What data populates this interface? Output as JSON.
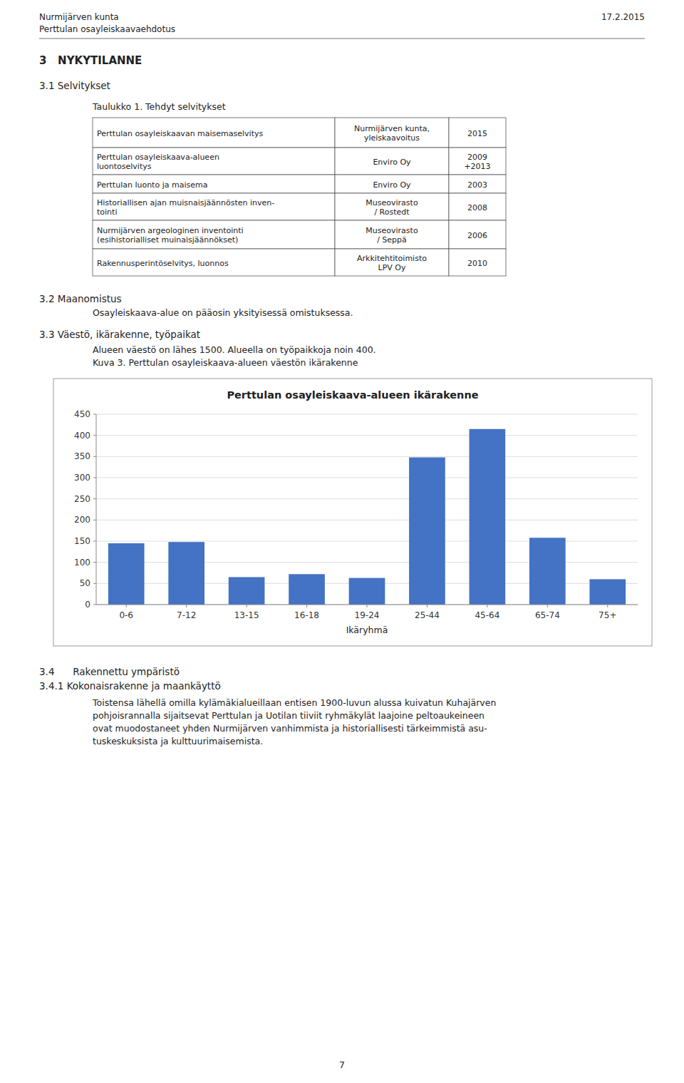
{
  "page_title_left": "Nurmijärven kunta",
  "page_title_right": "17.2.2015",
  "page_subtitle": "Perttulan osayleiskaavaehdotus",
  "section_heading": "3   NYKYTILANNE",
  "sub_heading1": "3.1 Selvitykset",
  "table_caption": "Taulukko 1. Tehdyt selvitykset",
  "table_rows": [
    [
      "Perttulan osayleiskaavan maisemaselvitys",
      "Nurmijärven kunta,\nyleiskaavoitus",
      "2015"
    ],
    [
      "Perttulan osayleiskaava-alueen\nluontoselvitys",
      "Enviro Oy",
      "2009\n+2013"
    ],
    [
      "Perttulan luonto ja maisema",
      "Enviro Oy",
      "2003"
    ],
    [
      "Historiallisen ajan muisnaisjäännösten inven-\ntointi",
      "Museovirasto\n/ Rostedt",
      "2008"
    ],
    [
      "Nurmijärven argeologinen inventointi\n(esihistorialliset muinaisjäännökset)",
      "Museovirasto\n/ Seppä",
      "2006"
    ],
    [
      "Rakennusperintöselvitys, luonnos",
      "Arkkitehtitoimisto\nLPV Oy",
      "2010"
    ]
  ],
  "sub_heading2": "3.2 Maanomistus",
  "paragraph2": "Osayleiskaava-alue on pääosin yksityisessä omistuksessa.",
  "sub_heading3": "3.3 Väestö, ikärakenne, työpaikat",
  "paragraph3a": "Alueen väestö on lähes 1500. Alueella on työpaikkoja noin 400.",
  "paragraph3b": "Kuva 3. Perttulan osayleiskaava-alueen väestön ikärakenne",
  "chart_data": {
    "type": "bar",
    "title": "Perttulan osayleiskaava-alueen ikärakenne",
    "xlabel": "Ikäryhmä",
    "categories": [
      "0-6",
      "7-12",
      "13-15",
      "16-18",
      "19-24",
      "25-44",
      "45-64",
      "65-74",
      "75+"
    ],
    "values": [
      145,
      148,
      65,
      72,
      63,
      348,
      415,
      158,
      60
    ],
    "color": "#4472C4",
    "ylim": [
      0,
      450
    ],
    "yticks": [
      0,
      50,
      100,
      150,
      200,
      250,
      300,
      350,
      400,
      450
    ],
    "grid": true
  },
  "sub_heading4": "3.4      Rakennettu ympäristö",
  "sub_heading5": "3.4.1 Kokonaisrakenne ja maankäyttö",
  "paragraph4": [
    "Toistensa lähellä omilla kylämäkialueillaan entisen 1900-luvun alussa kuivatun Kuhajärven",
    "pohjoisrannalla sijaitsevat Perttulan ja Uotilan tiiviit ryhmäkylät laajoine peltoaukeineen",
    "ovat muodostaneet yhden Nurmijärven vanhimmista ja historiallisesti tärkeimmistä asu-",
    "tuskeskuksista ja kulttuurimaisemista."
  ],
  "page_number": "7"
}
